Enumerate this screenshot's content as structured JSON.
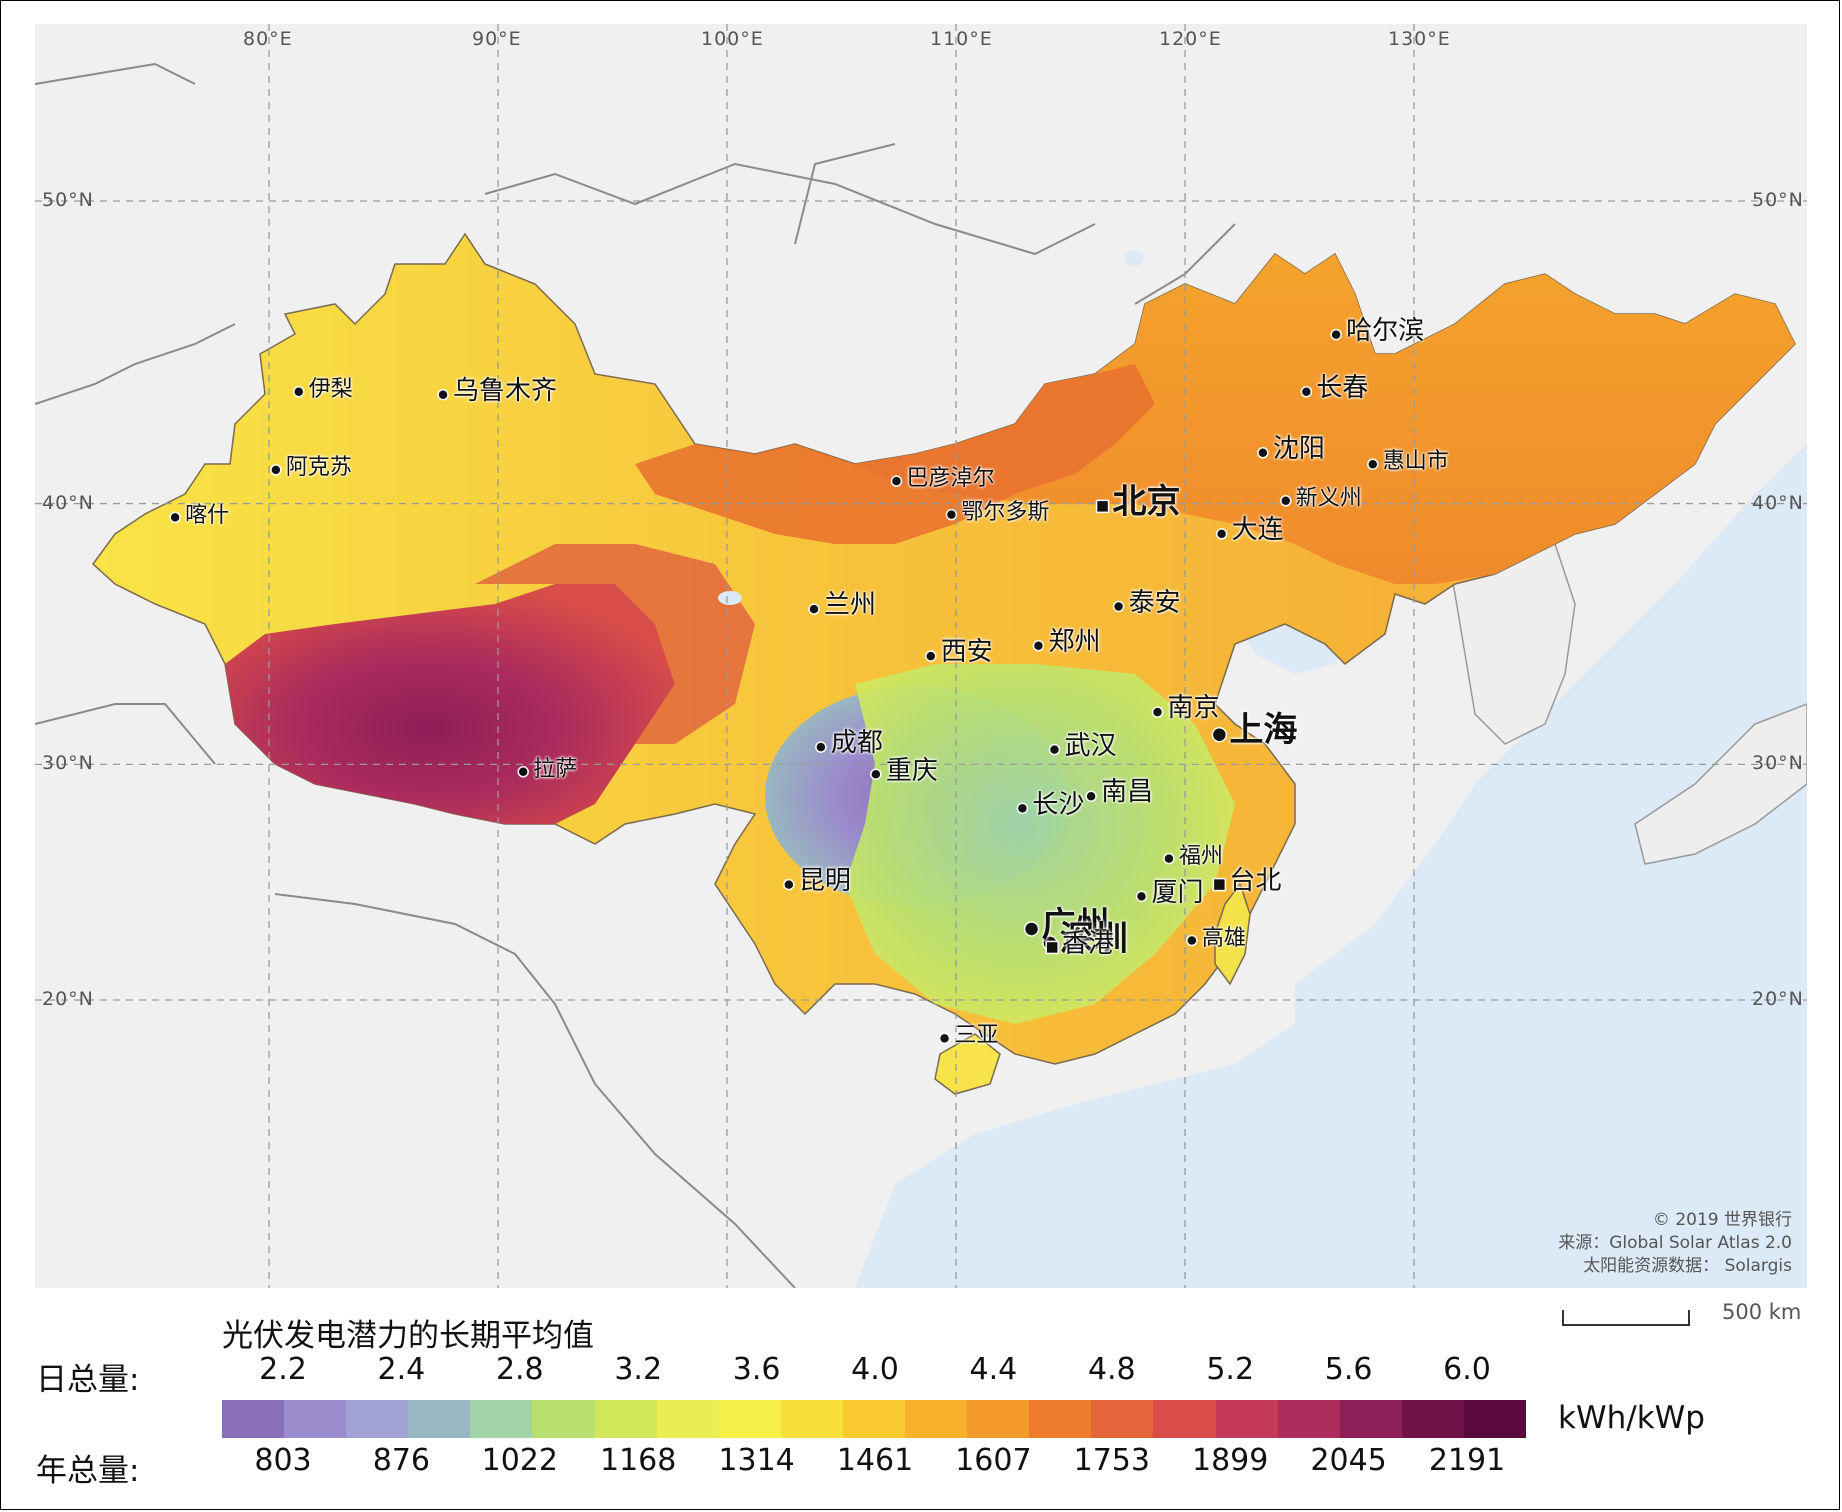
{
  "map": {
    "lon_labels": [
      "80°E",
      "90°E",
      "100°E",
      "110°E",
      "120°E",
      "130°E"
    ],
    "lat_labels": [
      "50°N",
      "40°N",
      "30°N",
      "20°N"
    ],
    "cities": [
      {
        "name": "乌鲁木齐",
        "lon": 87.6,
        "lat": 43.8,
        "size": "m",
        "marker": "dot"
      },
      {
        "name": "伊梨",
        "lon": 81.3,
        "lat": 43.9,
        "size": "s",
        "marker": "dot"
      },
      {
        "name": "阿克苏",
        "lon": 80.3,
        "lat": 41.2,
        "size": "s",
        "marker": "dot"
      },
      {
        "name": "喀什",
        "lon": 75.9,
        "lat": 39.5,
        "size": "s",
        "marker": "dot"
      },
      {
        "name": "拉萨",
        "lon": 91.1,
        "lat": 29.7,
        "size": "s",
        "marker": "dot"
      },
      {
        "name": "巴彦淖尔",
        "lon": 107.4,
        "lat": 40.8,
        "size": "s",
        "marker": "dot"
      },
      {
        "name": "鄂尔多斯",
        "lon": 109.8,
        "lat": 39.6,
        "size": "s",
        "marker": "dot"
      },
      {
        "name": "兰州",
        "lon": 103.8,
        "lat": 36.1,
        "size": "m",
        "marker": "dot"
      },
      {
        "name": "北京",
        "lon": 116.4,
        "lat": 39.9,
        "size": "l",
        "marker": "square"
      },
      {
        "name": "哈尔滨",
        "lon": 126.6,
        "lat": 45.8,
        "size": "m",
        "marker": "dot"
      },
      {
        "name": "长春",
        "lon": 125.3,
        "lat": 43.9,
        "size": "m",
        "marker": "dot"
      },
      {
        "name": "沈阳",
        "lon": 123.4,
        "lat": 41.8,
        "size": "m",
        "marker": "dot"
      },
      {
        "name": "惠山市",
        "lon": 128.2,
        "lat": 41.4,
        "size": "s",
        "marker": "dot"
      },
      {
        "name": "新义州",
        "lon": 124.4,
        "lat": 40.1,
        "size": "s",
        "marker": "dot"
      },
      {
        "name": "大连",
        "lon": 121.6,
        "lat": 38.9,
        "size": "m",
        "marker": "dot"
      },
      {
        "name": "泰安",
        "lon": 117.1,
        "lat": 36.2,
        "size": "m",
        "marker": "dot"
      },
      {
        "name": "郑州",
        "lon": 113.6,
        "lat": 34.7,
        "size": "m",
        "marker": "dot"
      },
      {
        "name": "西安",
        "lon": 108.9,
        "lat": 34.3,
        "size": "m",
        "marker": "dot"
      },
      {
        "name": "南京",
        "lon": 118.8,
        "lat": 32.1,
        "size": "m",
        "marker": "dot"
      },
      {
        "name": "上海",
        "lon": 121.5,
        "lat": 31.2,
        "size": "l",
        "marker": "bigdot"
      },
      {
        "name": "成都",
        "lon": 104.1,
        "lat": 30.7,
        "size": "m",
        "marker": "dot"
      },
      {
        "name": "武汉",
        "lon": 114.3,
        "lat": 30.6,
        "size": "m",
        "marker": "dot"
      },
      {
        "name": "重庆",
        "lon": 106.5,
        "lat": 29.6,
        "size": "m",
        "marker": "dot"
      },
      {
        "name": "长沙",
        "lon": 112.9,
        "lat": 28.2,
        "size": "m",
        "marker": "dot"
      },
      {
        "name": "南昌",
        "lon": 115.9,
        "lat": 28.7,
        "size": "m",
        "marker": "dot"
      },
      {
        "name": "福州",
        "lon": 119.3,
        "lat": 26.1,
        "size": "s",
        "marker": "dot"
      },
      {
        "name": "台北",
        "lon": 121.5,
        "lat": 25.0,
        "size": "m",
        "marker": "square"
      },
      {
        "name": "昆明",
        "lon": 102.7,
        "lat": 25.0,
        "size": "m",
        "marker": "dot"
      },
      {
        "name": "厦门",
        "lon": 118.1,
        "lat": 24.5,
        "size": "m",
        "marker": "dot"
      },
      {
        "name": "广州",
        "lon": 113.3,
        "lat": 23.1,
        "size": "l",
        "marker": "bigdot"
      },
      {
        "name": "深圳",
        "lon": 114.1,
        "lat": 22.5,
        "size": "l",
        "marker": "bigdot"
      },
      {
        "name": "香港",
        "lon": 114.2,
        "lat": 22.3,
        "size": "m",
        "marker": "square"
      },
      {
        "name": "高雄",
        "lon": 120.3,
        "lat": 22.6,
        "size": "s",
        "marker": "dot"
      },
      {
        "name": "三亚",
        "lon": 109.5,
        "lat": 18.3,
        "size": "s",
        "marker": "dot"
      }
    ]
  },
  "credits": [
    "© 2019 世界银行",
    "来源：Global Solar Atlas 2.0",
    "太阳能资源数据： Solargis"
  ],
  "scale_label": "500 km",
  "legend": {
    "title": "光伏发电潜力的长期平均值",
    "daily_label": "日总量:",
    "annual_label": "年总量:",
    "daily_values": [
      "2.2",
      "2.4",
      "2.8",
      "3.2",
      "3.6",
      "4.0",
      "4.4",
      "4.8",
      "5.2",
      "5.6",
      "6.0"
    ],
    "annual_values": [
      "803",
      "876",
      "1022",
      "1168",
      "1314",
      "1461",
      "1607",
      "1753",
      "1899",
      "2045",
      "2191"
    ],
    "unit": "kWh/kWp",
    "colors": [
      "#8a70b8",
      "#9a8ccc",
      "#a2a2d4",
      "#9ab6c0",
      "#9ed4a6",
      "#b8e070",
      "#d2e85a",
      "#eaee52",
      "#f6f048",
      "#f8e03a",
      "#f8ca30",
      "#f7b02a",
      "#f49a28",
      "#ee7c2c",
      "#e6643a",
      "#d84c4a",
      "#c43a58",
      "#ac2c5c",
      "#8e1e58",
      "#6e1248",
      "#5a0a3e"
    ]
  }
}
